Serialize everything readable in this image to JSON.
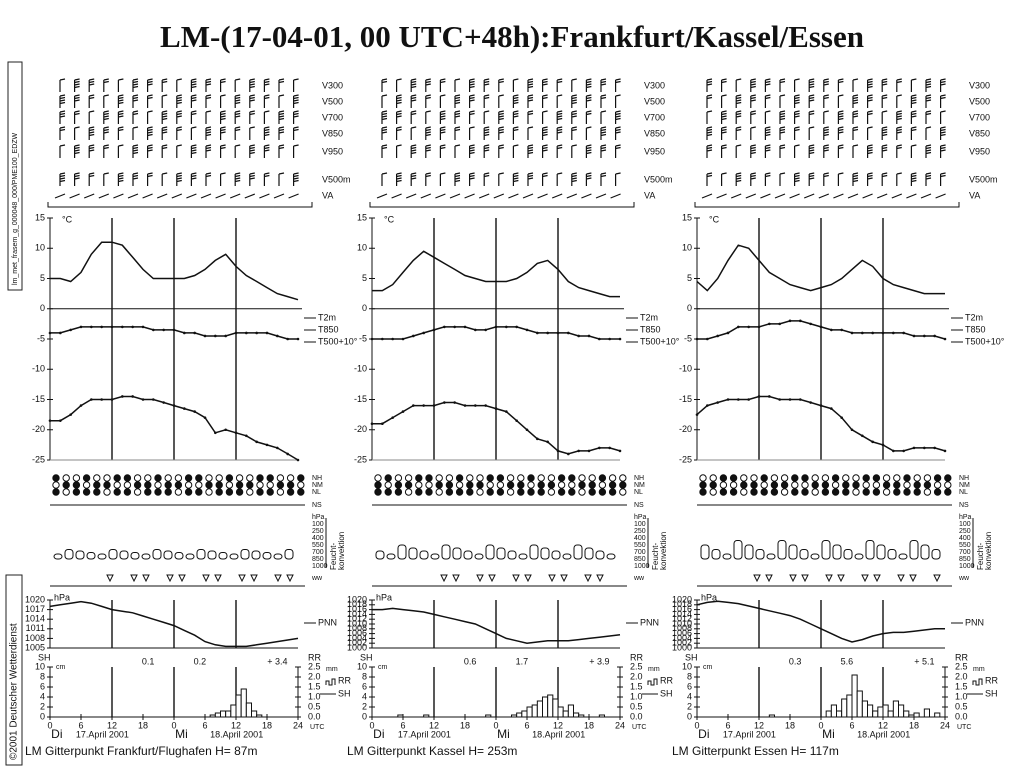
{
  "title": "LM-(17-04-01, 00 UTC+48h):Frankfurt/Kassel/Essen",
  "side_notes": [
    "©2001 Deutscher Wetterdienst",
    "lm_met_frasem_g_000048_000/PME100_EDZW"
  ],
  "wind_levels": [
    "V300",
    "V500",
    "V700",
    "V850",
    "V950",
    "V500m",
    "VA"
  ],
  "cloud_labels": [
    "NH",
    "NM",
    "NL",
    "NS"
  ],
  "convection": {
    "unit": "hPa",
    "levels": [
      "100",
      "250",
      "400",
      "550",
      "700",
      "850",
      "1000"
    ],
    "title": [
      "Feucht-",
      "konvektion"
    ]
  },
  "weather_label": "ww",
  "days": [
    "Di",
    "17.April 2001",
    "Mi",
    "18.April 2001"
  ],
  "stations": [
    {
      "footer": "LM Gitterpunkt Frankfurt/Flughafen   H=   87m",
      "precip_totals": [
        "0.1",
        "0.2",
        "+ 3.4"
      ]
    },
    {
      "footer": "LM Gitterpunkt Kassel   H= 253m",
      "precip_totals": [
        "0.6",
        "1.7",
        "+ 3.9"
      ]
    },
    {
      "footer": "LM Gitterpunkt Essen   H=  117m",
      "precip_totals": [
        "0.3",
        "5.6",
        "+ 5.1"
      ]
    }
  ],
  "chart_data": [
    {
      "type": "line",
      "ylabel": "°C",
      "xlim": [
        0,
        48
      ],
      "vlines": [
        12,
        24,
        36
      ],
      "ylim": [
        -25,
        15
      ],
      "yticks": [
        15,
        10,
        5,
        0,
        -5,
        -10,
        -15,
        -20,
        -25
      ],
      "x": [
        0,
        2,
        4,
        6,
        8,
        10,
        12,
        14,
        16,
        18,
        20,
        22,
        24,
        26,
        28,
        30,
        32,
        34,
        36,
        38,
        40,
        42,
        44,
        46,
        48
      ],
      "series": [
        {
          "name": "T2m",
          "color": "#111",
          "values": [
            5,
            5,
            4.5,
            6,
            9,
            11,
            11,
            10.5,
            8.5,
            6.5,
            5,
            5,
            5,
            5,
            5.5,
            6.5,
            8,
            9,
            7,
            5.5,
            4.5,
            3.5,
            2.5,
            2,
            1.5
          ]
        },
        {
          "name": "T850",
          "color": "#111",
          "values": [
            -4,
            -4,
            -3.5,
            -3,
            -3,
            -3,
            -3,
            -3,
            -3,
            -3,
            -3.5,
            -3.5,
            -3.5,
            -4,
            -4,
            -4.5,
            -4.5,
            -4.5,
            -4,
            -4,
            -4,
            -4,
            -4.5,
            -5,
            -5
          ]
        },
        {
          "name": "T500+10°",
          "color": "#111",
          "values": [
            -18.5,
            -18.5,
            -17.5,
            -16,
            -15,
            -15,
            -15,
            -14.5,
            -14.5,
            -15,
            -15,
            -15.5,
            -16,
            -16.5,
            -17,
            -18,
            -20.5,
            -20,
            -20.5,
            -21,
            -22,
            -22.5,
            -23,
            -24,
            -25
          ]
        }
      ]
    },
    {
      "type": "line",
      "ylabel": "hPa",
      "xlim": [
        0,
        48
      ],
      "vlines": [
        12,
        24,
        36
      ],
      "ylim": [
        1005,
        1020
      ],
      "yticks": [
        1020,
        1017,
        1014,
        1011,
        1008,
        1005
      ],
      "x": [
        0,
        2,
        4,
        6,
        8,
        10,
        12,
        14,
        16,
        18,
        20,
        22,
        24,
        26,
        28,
        30,
        32,
        34,
        36,
        38,
        40,
        42,
        44,
        46,
        48
      ],
      "series": [
        {
          "name": "PNN",
          "color": "#111",
          "values": [
            1018,
            1018.5,
            1019,
            1019.5,
            1019,
            1018,
            1017,
            1016.5,
            1016,
            1015,
            1014,
            1013,
            1012,
            1010.5,
            1009,
            1007,
            1006,
            1005.5,
            1005.5,
            1005.5,
            1006,
            1006.5,
            1007,
            1007.5,
            1008
          ]
        }
      ]
    },
    {
      "type": "bar",
      "ytitle": "SH",
      "ylabel": "cm",
      "y2title": "RR",
      "y2label": "mm",
      "xlabel": "UTC",
      "xlim": [
        0,
        48
      ],
      "vlines": [
        12,
        24,
        36
      ],
      "xticks": [
        0,
        6,
        12,
        18,
        {
          "value": 24,
          "label": "0"
        },
        {
          "value": 30,
          "label": "6"
        },
        {
          "value": 36,
          "label": "12"
        },
        {
          "value": 42,
          "label": "18"
        },
        {
          "value": 48,
          "label": "24"
        }
      ],
      "ylim": [
        0,
        10
      ],
      "yticks": [
        0,
        2,
        4,
        6,
        8,
        10
      ],
      "y2lim": [
        0,
        2.5
      ],
      "y2ticks": [
        {
          "value": 0,
          "label": "0.0"
        },
        0.5,
        {
          "value": 1,
          "label": "1.0"
        },
        1.5,
        {
          "value": 2,
          "label": "2.0"
        },
        2.5
      ],
      "x": [
        31,
        32,
        33,
        34,
        35,
        36,
        37,
        38,
        39,
        40
      ],
      "series": [
        {
          "name": "RR",
          "axis": "y2",
          "color": "#111",
          "values": [
            0.1,
            0.2,
            0.3,
            0.3,
            0.6,
            1.1,
            1.4,
            0.7,
            0.3,
            0.1
          ]
        }
      ]
    },
    {
      "type": "line",
      "ylabel": "°C",
      "xlim": [
        0,
        48
      ],
      "vlines": [
        12,
        24,
        36
      ],
      "ylim": [
        -25,
        15
      ],
      "yticks": [
        15,
        10,
        5,
        0,
        -5,
        -10,
        -15,
        -20,
        -25
      ],
      "x": [
        0,
        2,
        4,
        6,
        8,
        10,
        12,
        14,
        16,
        18,
        20,
        22,
        24,
        26,
        28,
        30,
        32,
        34,
        36,
        38,
        40,
        42,
        44,
        46,
        48
      ],
      "series": [
        {
          "name": "T2m",
          "color": "#111",
          "values": [
            3,
            3,
            4,
            6,
            8,
            9.5,
            8.5,
            7.5,
            6.5,
            5.5,
            5,
            4.5,
            4.5,
            4.5,
            5,
            6,
            7.5,
            8,
            6.5,
            4.5,
            3.5,
            3,
            2.5,
            2,
            2
          ]
        },
        {
          "name": "T850",
          "color": "#111",
          "values": [
            -5,
            -5,
            -5,
            -5,
            -4.5,
            -4,
            -3.5,
            -3,
            -3,
            -3,
            -3.5,
            -3.5,
            -3,
            -3,
            -3,
            -3.5,
            -4,
            -4,
            -4,
            -4,
            -4.5,
            -4.5,
            -5,
            -5,
            -5
          ]
        },
        {
          "name": "T500+10°",
          "color": "#111",
          "values": [
            -19,
            -19,
            -18,
            -17,
            -16,
            -16,
            -16,
            -15.5,
            -15.5,
            -16,
            -16,
            -16,
            -16.5,
            -17,
            -18.5,
            -20,
            -21.5,
            -22,
            -23.5,
            -24,
            -23.5,
            -23.5,
            -23,
            -23,
            -23.5
          ]
        }
      ]
    },
    {
      "type": "line",
      "ylabel": "hPa",
      "xlim": [
        0,
        48
      ],
      "vlines": [
        12,
        24,
        36
      ],
      "ylim": [
        1000,
        1020
      ],
      "yticks": [
        1020,
        1018,
        1016,
        1014,
        1012,
        1010,
        1008,
        1006,
        1004,
        1002,
        1000
      ],
      "x": [
        0,
        2,
        4,
        6,
        8,
        10,
        12,
        14,
        16,
        18,
        20,
        22,
        24,
        26,
        28,
        30,
        32,
        34,
        36,
        38,
        40,
        42,
        44,
        46,
        48
      ],
      "series": [
        {
          "name": "PNN",
          "color": "#111",
          "values": [
            1016,
            1016,
            1016.5,
            1016,
            1015.5,
            1015,
            1014,
            1013,
            1012,
            1011,
            1010,
            1008,
            1006,
            1004,
            1003,
            1002,
            1002.5,
            1003,
            1003,
            1003,
            1003.5,
            1004,
            1004.5,
            1005,
            1005.5
          ]
        }
      ]
    },
    {
      "type": "bar",
      "ytitle": "SH",
      "ylabel": "cm",
      "y2title": "RR",
      "y2label": "mm",
      "xlabel": "UTC",
      "xlim": [
        0,
        48
      ],
      "vlines": [
        12,
        24,
        36
      ],
      "xticks": [
        0,
        6,
        12,
        18,
        {
          "value": 24,
          "label": "0"
        },
        {
          "value": 30,
          "label": "6"
        },
        {
          "value": 36,
          "label": "12"
        },
        {
          "value": 42,
          "label": "18"
        },
        {
          "value": 48,
          "label": "24"
        }
      ],
      "ylim": [
        0,
        10
      ],
      "yticks": [
        0,
        2,
        4,
        6,
        8,
        10
      ],
      "y2lim": [
        0,
        2.5
      ],
      "y2ticks": [
        {
          "value": 0,
          "label": "0.0"
        },
        0.5,
        {
          "value": 1,
          "label": "1.0"
        },
        1.5,
        {
          "value": 2,
          "label": "2.0"
        },
        2.5
      ],
      "x": [
        5,
        10,
        22,
        27,
        28,
        29,
        30,
        31,
        32,
        33,
        34,
        35,
        36,
        37,
        38,
        39,
        40,
        44
      ],
      "series": [
        {
          "name": "RR",
          "axis": "y2",
          "color": "#111",
          "values": [
            0.1,
            0.1,
            0.1,
            0.1,
            0.2,
            0.3,
            0.5,
            0.6,
            0.8,
            1.0,
            1.1,
            0.9,
            0.5,
            0.3,
            0.6,
            0.2,
            0.1,
            0.1
          ]
        }
      ]
    },
    {
      "type": "line",
      "ylabel": "°C",
      "xlim": [
        0,
        48
      ],
      "vlines": [
        12,
        24,
        36
      ],
      "ylim": [
        -25,
        15
      ],
      "yticks": [
        15,
        10,
        5,
        0,
        -5,
        -10,
        -15,
        -20,
        -25
      ],
      "x": [
        0,
        2,
        4,
        6,
        8,
        10,
        12,
        14,
        16,
        18,
        20,
        22,
        24,
        26,
        28,
        30,
        32,
        34,
        36,
        38,
        40,
        42,
        44,
        46,
        48
      ],
      "series": [
        {
          "name": "T2m",
          "color": "#111",
          "values": [
            4.5,
            3,
            5,
            8,
            10.5,
            10,
            8,
            6,
            5,
            4,
            3.5,
            3,
            3.5,
            4,
            5,
            6.5,
            8,
            7,
            5,
            4,
            3.5,
            3,
            2.5,
            2.5,
            2.5
          ]
        },
        {
          "name": "T850",
          "color": "#111",
          "values": [
            -5,
            -5,
            -4.5,
            -4,
            -3,
            -3,
            -3,
            -2.5,
            -2.5,
            -2,
            -2,
            -2.5,
            -3,
            -3.5,
            -3.5,
            -4,
            -4,
            -4,
            -4,
            -4,
            -4,
            -4.5,
            -4.5,
            -4.5,
            -5
          ]
        },
        {
          "name": "T500+10°",
          "color": "#111",
          "values": [
            -17.5,
            -16,
            -15.5,
            -15,
            -15,
            -15,
            -14.5,
            -14.5,
            -15,
            -15,
            -15,
            -15.5,
            -16,
            -16.5,
            -18,
            -20,
            -21,
            -22,
            -22.5,
            -23.5,
            -23.5,
            -23,
            -23,
            -23,
            -23.5
          ]
        }
      ]
    },
    {
      "type": "line",
      "ylabel": "hPa",
      "xlim": [
        0,
        48
      ],
      "vlines": [
        12,
        24,
        36
      ],
      "ylim": [
        1000,
        1020
      ],
      "yticks": [
        1020,
        1018,
        1016,
        1014,
        1012,
        1010,
        1008,
        1006,
        1004,
        1002,
        1000
      ],
      "x": [
        0,
        2,
        4,
        6,
        8,
        10,
        12,
        14,
        16,
        18,
        20,
        22,
        24,
        26,
        28,
        30,
        32,
        34,
        36,
        38,
        40,
        42,
        44,
        46,
        48
      ],
      "series": [
        {
          "name": "PNN",
          "color": "#111",
          "values": [
            1018,
            1019,
            1019.5,
            1019,
            1018.5,
            1017.5,
            1016.5,
            1015.5,
            1014.5,
            1013.5,
            1012,
            1010,
            1008,
            1006,
            1004,
            1002.5,
            1003.5,
            1005,
            1006,
            1006.5,
            1006.5,
            1007,
            1007.5,
            1008,
            1008
          ]
        }
      ]
    },
    {
      "type": "bar",
      "ytitle": "SH",
      "ylabel": "cm",
      "y2title": "RR",
      "y2label": "mm",
      "xlabel": "UTC",
      "xlim": [
        0,
        48
      ],
      "vlines": [
        12,
        24,
        36
      ],
      "xticks": [
        0,
        6,
        12,
        18,
        {
          "value": 24,
          "label": "0"
        },
        {
          "value": 30,
          "label": "6"
        },
        {
          "value": 36,
          "label": "12"
        },
        {
          "value": 42,
          "label": "18"
        },
        {
          "value": 48,
          "label": "24"
        }
      ],
      "ylim": [
        0,
        10
      ],
      "yticks": [
        0,
        2,
        4,
        6,
        8,
        10
      ],
      "y2lim": [
        0,
        2.5
      ],
      "y2ticks": [
        {
          "value": 0,
          "label": "0.0"
        },
        0.5,
        {
          "value": 1,
          "label": "1.0"
        },
        1.5,
        {
          "value": 2,
          "label": "2.0"
        },
        2.5
      ],
      "x": [
        14,
        25,
        26,
        27,
        28,
        29,
        30,
        31,
        32,
        33,
        34,
        35,
        36,
        37,
        38,
        39,
        40,
        41,
        42,
        44,
        46
      ],
      "series": [
        {
          "name": "RR",
          "axis": "y2",
          "color": "#111",
          "values": [
            0.1,
            0.3,
            0.6,
            0.3,
            0.9,
            1.1,
            2.1,
            1.3,
            0.8,
            0.6,
            0.3,
            0.5,
            0.6,
            0.3,
            0.8,
            0.6,
            0.3,
            0.1,
            0.2,
            0.4,
            0.2
          ]
        }
      ]
    }
  ]
}
